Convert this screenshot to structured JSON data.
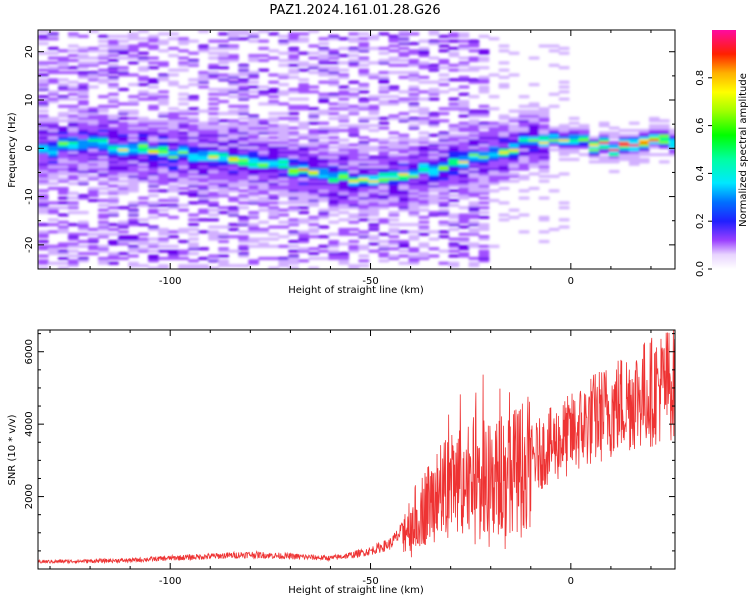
{
  "figure": {
    "title": "PAZ1.2024.161.01.28.G26"
  },
  "chart_data": [
    {
      "type": "heatmap",
      "xlabel": "Height of straight line (km)",
      "ylabel": "Frequency (Hz)",
      "xlim": [
        -133,
        26
      ],
      "ylim": [
        -25,
        24.5
      ],
      "x_ticks": [
        -100,
        -50,
        0
      ],
      "y_ticks": [
        -20,
        -10,
        0,
        10,
        20
      ],
      "colorbar": {
        "label": "Normalized spectral amplitude",
        "range": [
          0,
          1
        ],
        "ticks": [
          "0.0",
          "0.2",
          "0.4",
          "0.6",
          "0.8"
        ],
        "colormap": "gist_ncar-like (white, violet, blue, cyan, green, yellow, orange, red, magenta)"
      },
      "ridge": {
        "description": "dominant frequency ridge (Hz) versus height (km)",
        "x": [
          -130,
          -120,
          -110,
          -100,
          -90,
          -80,
          -70,
          -60,
          -50,
          -40,
          -30,
          -20,
          -10,
          0,
          10,
          20,
          26
        ],
        "y": [
          0,
          1,
          0,
          -1,
          -1.5,
          -2,
          -4,
          -6,
          -6.5,
          -5,
          -3,
          -1,
          1.5,
          2.5,
          0,
          1.5,
          1.5
        ]
      }
    },
    {
      "type": "line",
      "xlabel": "Height of straight line (km)",
      "ylabel": "SNR (10 * v/v)",
      "xlim": [
        -133,
        26
      ],
      "ylim": [
        0,
        6600
      ],
      "x_ticks": [
        -100,
        -50,
        0
      ],
      "y_ticks": [
        2000,
        4000,
        6000
      ],
      "color": "#ee3333",
      "envelope": {
        "x": [
          -133,
          -120,
          -110,
          -100,
          -90,
          -80,
          -70,
          -60,
          -55,
          -50,
          -45,
          -40,
          -35,
          -30,
          -25,
          -20,
          -15,
          -10,
          -5,
          0,
          5,
          10,
          15,
          20,
          26
        ],
        "y": [
          200,
          220,
          240,
          300,
          350,
          400,
          350,
          300,
          380,
          500,
          700,
          1300,
          1900,
          2300,
          2600,
          2500,
          2700,
          3000,
          3400,
          3700,
          4100,
          4400,
          4700,
          4900,
          5200
        ]
      }
    }
  ]
}
